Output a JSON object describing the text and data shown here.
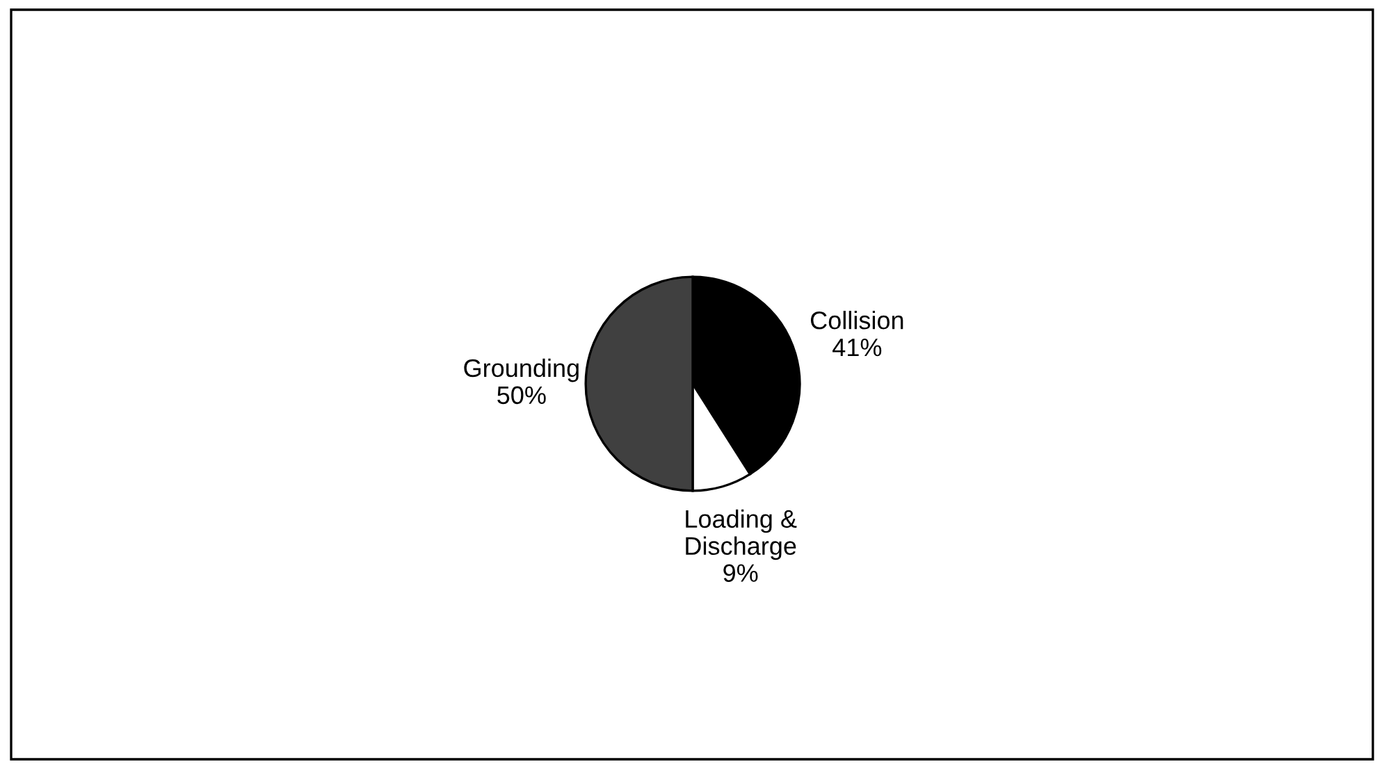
{
  "chart_data": {
    "type": "pie",
    "categories": [
      "Collision",
      "Loading &\nDischarge",
      "Grounding"
    ],
    "values": [
      41,
      9,
      50
    ],
    "value_labels": [
      "41%",
      "9%",
      "50%"
    ],
    "colors": [
      "#000000",
      "#ffffff",
      "#404040"
    ]
  }
}
